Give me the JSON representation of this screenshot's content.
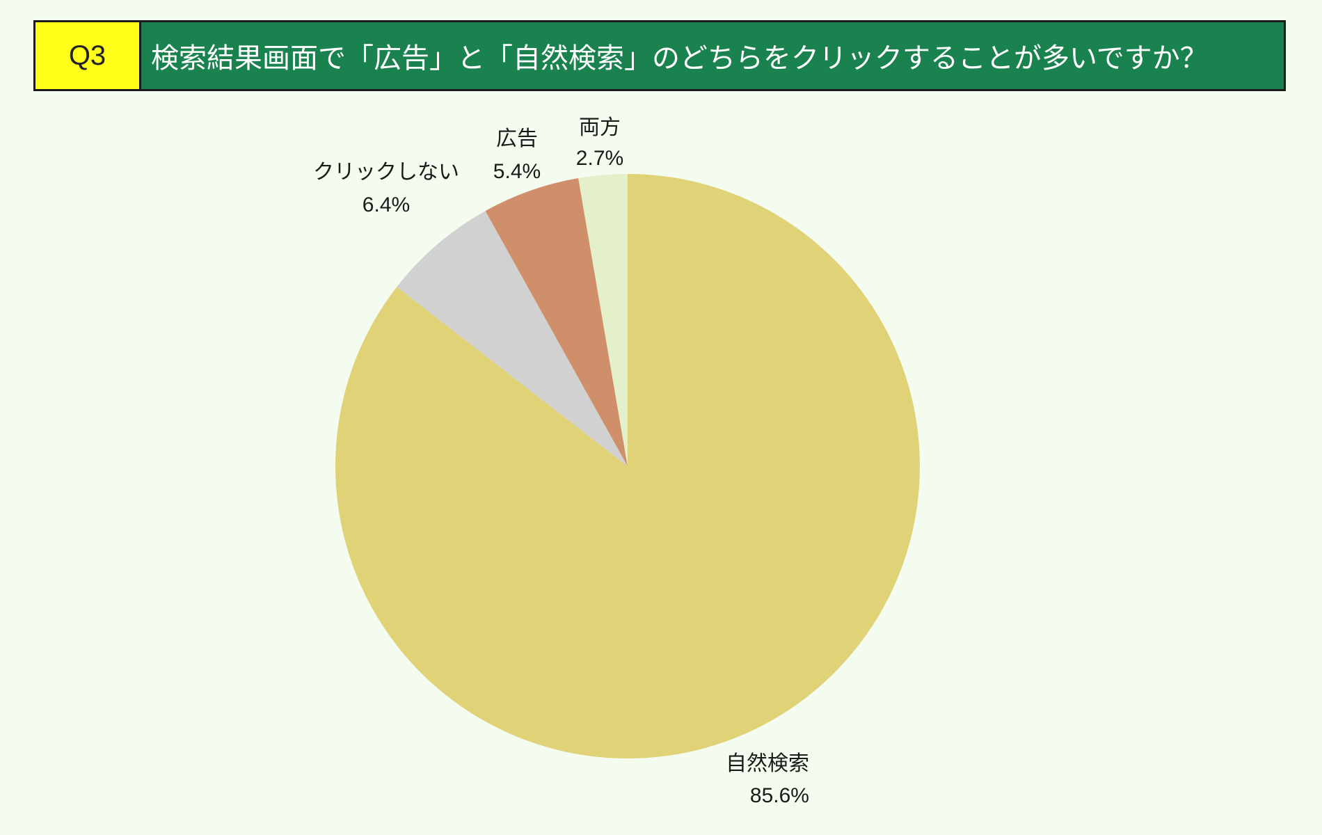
{
  "header": {
    "question_no": "Q3",
    "title": "検索結果画面で「広告」と「自然検索」のどちらをクリックすることが多いですか？"
  },
  "colors": {
    "background": "#f4fbef",
    "header_bg": "#19824f",
    "question_bg": "#ffff1a",
    "border": "#1b1b1b"
  },
  "chart_data": {
    "type": "pie",
    "start_angle_deg": 0,
    "direction": "clockwise",
    "slices": [
      {
        "label": "自然検索",
        "value": 85.6,
        "value_label": "85.6%",
        "color": "#e0d277",
        "label_anchor": "end"
      },
      {
        "label": "クリックしない",
        "value": 6.4,
        "value_label": "6.4%",
        "color": "#d1d1d1",
        "label_anchor": "middle"
      },
      {
        "label": "広告",
        "value": 5.4,
        "value_label": "5.4%",
        "color": "#cf8f6a",
        "label_anchor": "middle"
      },
      {
        "label": "両方",
        "value": 2.7,
        "value_label": "2.7%",
        "color": "#e4f0c9",
        "label_anchor": "middle"
      }
    ]
  }
}
